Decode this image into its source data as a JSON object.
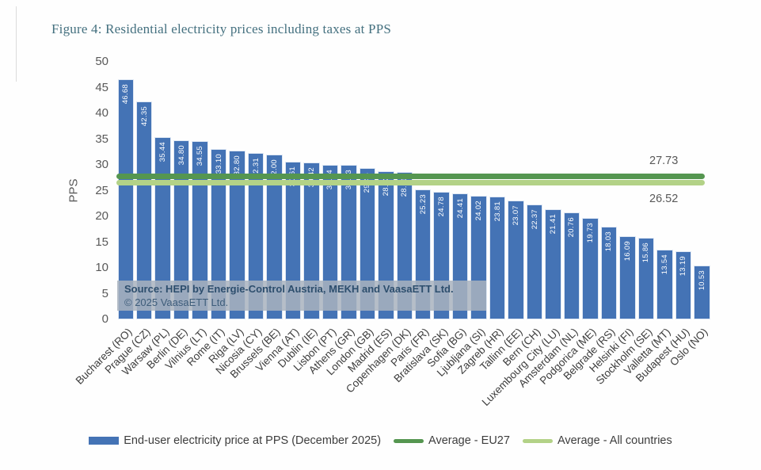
{
  "page": {
    "title": "Figure 4: Residential electricity prices including taxes at PPS"
  },
  "chart_data": {
    "type": "bar",
    "title": "Figure 4: Residential electricity prices including taxes at PPS",
    "xlabel": "",
    "ylabel": "PPS",
    "ylim": [
      0,
      50
    ],
    "ytick_step": 5,
    "grid": false,
    "categories": [
      "Bucharest (RO)",
      "Prague (CZ)",
      "Warsaw (PL)",
      "Berlin (DE)",
      "Vilnius (LT)",
      "Rome (IT)",
      "Riga (LV)",
      "Nicosia (CY)",
      "Brussels (BE)",
      "Vienna (AT)",
      "Dublin (IE)",
      "Lisbon (PT)",
      "Athens (GR)",
      "London (GB)",
      "Madrid (ES)",
      "Copenhagen (DK)",
      "Paris (FR)",
      "Bratislava (SK)",
      "Sofia (BG)",
      "Ljubljana (SI)",
      "Zagreb (HR)",
      "Tallinn (EE)",
      "Bern (CH)",
      "Luxembourg City (LU)",
      "Amsterdam (NL)",
      "Podgorica (ME)",
      "Belgrade (RS)",
      "Helsinki (FI)",
      "Stockholm (SE)",
      "Valletta (MT)",
      "Budapest (HU)",
      "Oslo (NO)"
    ],
    "values": [
      46.68,
      42.35,
      35.44,
      34.8,
      34.55,
      33.1,
      32.8,
      32.31,
      32.0,
      30.61,
      30.42,
      30.04,
      30.03,
      29.46,
      28.73,
      28.61,
      25.23,
      24.78,
      24.41,
      24.02,
      23.81,
      23.07,
      22.37,
      21.41,
      20.76,
      19.73,
      18.03,
      16.09,
      15.86,
      13.54,
      13.19,
      10.53
    ],
    "bar_color": "#4473b5",
    "bar_value_color": "#ffffff",
    "avg_lines": [
      {
        "name": "Average - EU27",
        "value": 27.73,
        "annotation": "27.73",
        "color": "#559650"
      },
      {
        "name": "Average - All countries",
        "value": 26.52,
        "annotation": "26.52",
        "color": "#b3d287"
      }
    ],
    "legend": [
      {
        "label": "End-user electricity price at PPS (December 2025)",
        "swatch": "bar",
        "color": "#4473b5"
      },
      {
        "label": "Average - EU27",
        "swatch": "line",
        "color": "#559650"
      },
      {
        "label": "Average - All countries",
        "swatch": "line",
        "color": "#b3d287"
      }
    ],
    "legend_position": "bottom"
  },
  "source_box": {
    "line1": "Source: HEPI by Energie-Control Austria, MEKH and VaasaETT Ltd.",
    "line2": "© 2025 VaasaETT Ltd."
  }
}
